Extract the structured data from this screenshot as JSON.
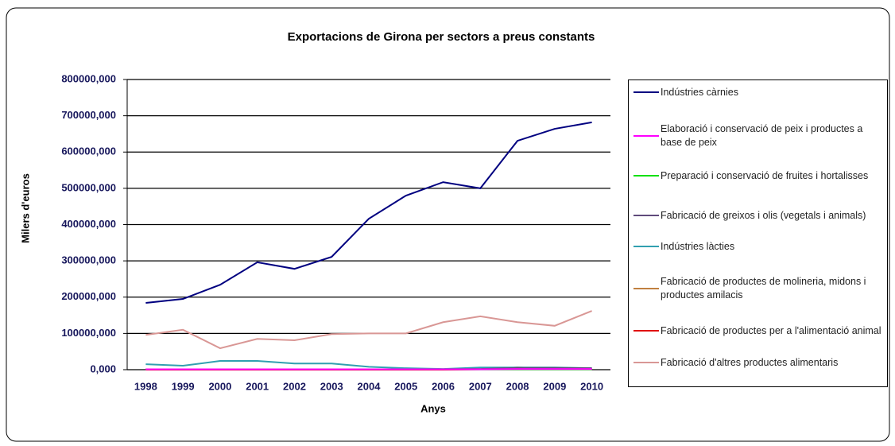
{
  "chart_data": {
    "type": "line",
    "title": "Exportacions de Girona per sectors a preus constants",
    "xlabel": "Anys",
    "ylabel": "Milers d'euros",
    "categories": [
      "1998",
      "1999",
      "2000",
      "2001",
      "2002",
      "2003",
      "2004",
      "2005",
      "2006",
      "2007",
      "2008",
      "2009",
      "2010"
    ],
    "ylim": [
      0,
      800000
    ],
    "yticks": [
      {
        "value": 0,
        "label": "0,000"
      },
      {
        "value": 100000,
        "label": "100000,000"
      },
      {
        "value": 200000,
        "label": "200000,000"
      },
      {
        "value": 300000,
        "label": "300000,000"
      },
      {
        "value": 400000,
        "label": "400000,000"
      },
      {
        "value": 500000,
        "label": "500000,000"
      },
      {
        "value": 600000,
        "label": "600000,000"
      },
      {
        "value": 700000,
        "label": "700000,000"
      },
      {
        "value": 800000,
        "label": "800000,000"
      }
    ],
    "grid": true,
    "legend": "right",
    "series": [
      {
        "name": "Indústries càrnies",
        "color": "#000080",
        "values": [
          184000,
          195000,
          234000,
          296000,
          278000,
          311000,
          416000,
          480000,
          517000,
          500000,
          631000,
          664000,
          682000
        ]
      },
      {
        "name": "Elaboració i conservació de peix i productes a base de peix",
        "color": "#ff00ff",
        "values": [
          1000,
          1000,
          1000,
          1000,
          1000,
          1000,
          1000,
          1000,
          1000,
          1000,
          2000,
          2000,
          2000
        ]
      },
      {
        "name": "Preparació i conservació de fruites i hortalisses",
        "color": "#00e000",
        "values": [
          1000,
          1000,
          1000,
          1000,
          1000,
          1000,
          1000,
          1000,
          1000,
          1000,
          1000,
          1000,
          1000
        ]
      },
      {
        "name": "Fabricació de greixos i olis (vegetals i animals)",
        "color": "#604a7b",
        "values": [
          1000,
          1000,
          1000,
          1000,
          1000,
          1000,
          1000,
          1000,
          1000,
          2000,
          5000,
          5000,
          4000
        ]
      },
      {
        "name": "Indústries làcties",
        "color": "#31a0b0",
        "values": [
          15000,
          11000,
          24000,
          24000,
          17000,
          17000,
          8000,
          4000,
          2000,
          6000,
          6000,
          6000,
          4000
        ]
      },
      {
        "name": "Fabricació de productes de molineria, midons i productes amilacis",
        "color": "#c08040",
        "values": [
          1000,
          1000,
          1000,
          1000,
          1000,
          1000,
          1000,
          1000,
          1000,
          1000,
          2000,
          2000,
          2000
        ]
      },
      {
        "name": "Fabricació de productes per a l'alimentació animal",
        "color": "#e00000",
        "values": [
          0,
          0,
          0,
          0,
          0,
          0,
          0,
          0,
          0,
          1000,
          6000,
          3000,
          2000
        ]
      },
      {
        "name": "Fabricació d'altres productes alimentaris",
        "color": "#d99795",
        "values": [
          96000,
          110000,
          59000,
          85000,
          81000,
          98000,
          100000,
          100000,
          131000,
          147000,
          131000,
          121000,
          162000
        ]
      }
    ]
  }
}
